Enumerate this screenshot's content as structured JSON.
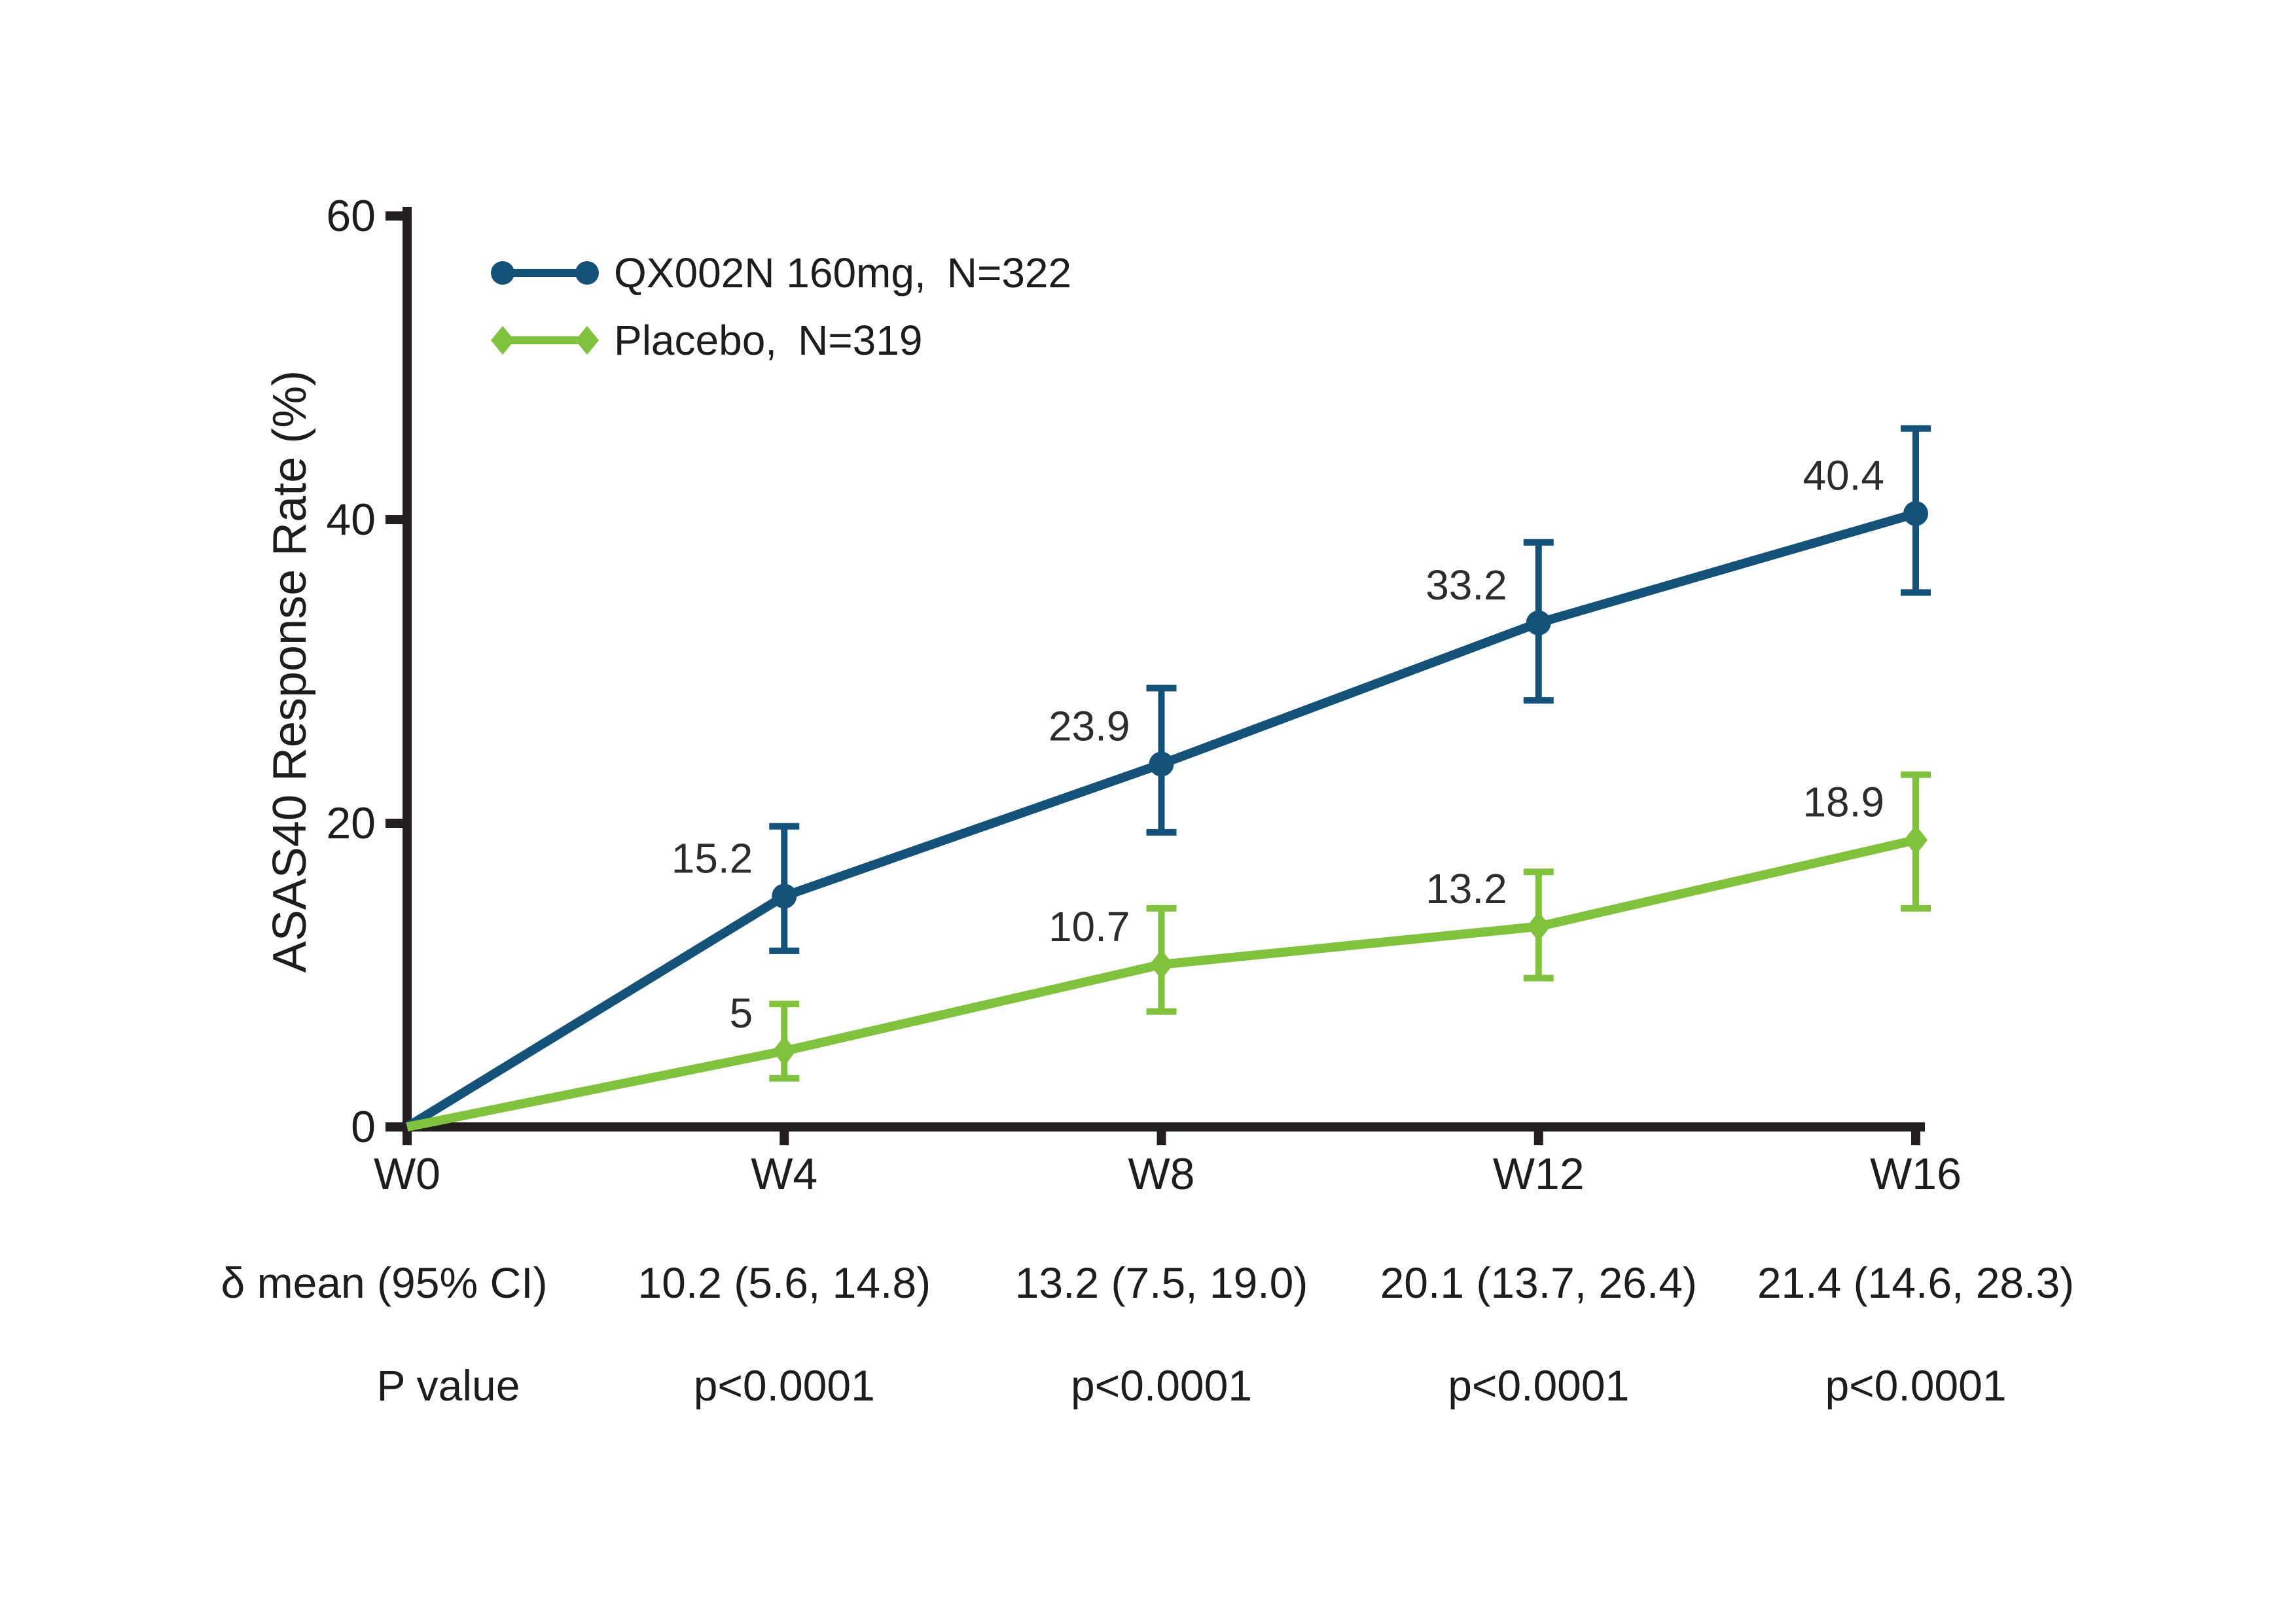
{
  "colors": {
    "axis": "#231f20",
    "text": "#1d1d1d",
    "value_label": "#2c2c2c",
    "series1": "#15527a",
    "series2": "#80c13e",
    "background": "#ffffff"
  },
  "chart_data": {
    "type": "line",
    "title": "",
    "xlabel": "",
    "ylabel": "ASAS40 Response Rate (%)",
    "categories": [
      "W0",
      "W4",
      "W8",
      "W12",
      "W16"
    ],
    "x_weeks": [
      0,
      4,
      8,
      12,
      16
    ],
    "y_ticks": [
      0,
      20,
      40,
      60
    ],
    "ylim": [
      0,
      60
    ],
    "grid": false,
    "legend_position": "inside-top-left",
    "series": [
      {
        "name": "QX002N 160mg, N=322",
        "group": "QX002N 160mg",
        "n": 322,
        "color": "#15527a",
        "marker": "circle",
        "values": [
          0,
          15.2,
          23.9,
          33.2,
          40.4
        ],
        "value_labels": [
          "",
          "15.2",
          "23.9",
          "33.2",
          "40.4"
        ],
        "ci_low": [
          null,
          11.6,
          19.4,
          28.1,
          35.2
        ],
        "ci_high": [
          null,
          19.8,
          28.9,
          38.5,
          46.0
        ]
      },
      {
        "name": "Placebo, N=319",
        "group": "Placebo",
        "n": 319,
        "color": "#80c13e",
        "marker": "diamond",
        "values": [
          0,
          5,
          10.7,
          13.2,
          18.9
        ],
        "value_labels": [
          "",
          "5",
          "10.7",
          "13.2",
          "18.9"
        ],
        "ci_low": [
          null,
          3.2,
          7.6,
          9.8,
          14.4
        ],
        "ci_high": [
          null,
          8.1,
          14.4,
          16.8,
          23.2
        ]
      }
    ]
  },
  "table": {
    "rows": [
      {
        "label": "δ mean (95% CI)",
        "values": [
          "10.2 (5.6, 14.8)",
          "13.2 (7.5, 19.0)",
          "20.1 (13.7, 26.4)",
          "21.4 (14.6, 28.3)"
        ]
      },
      {
        "label": "P value",
        "values": [
          "p<0.0001",
          "p<0.0001",
          "p<0.0001",
          "p<0.0001"
        ]
      }
    ]
  }
}
